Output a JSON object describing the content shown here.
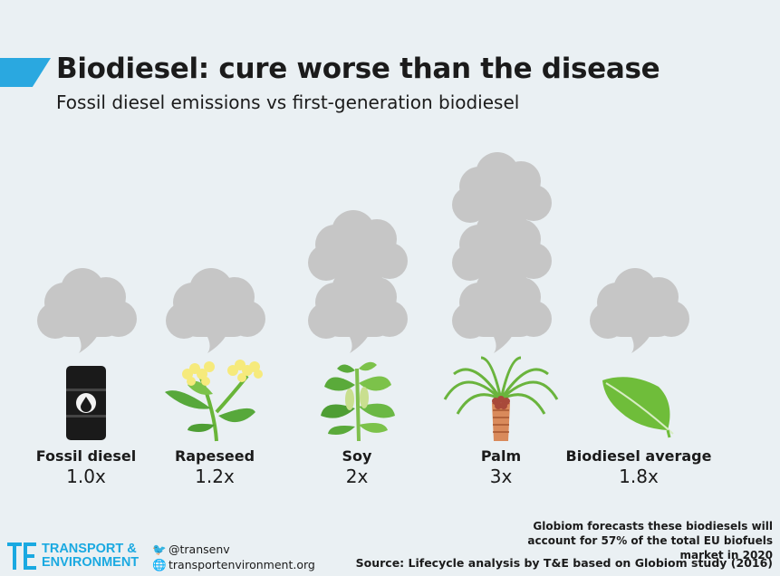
{
  "header": {
    "title": "Biodiesel: cure worse than the disease",
    "subtitle": "Fossil diesel emissions vs first-generation biodiesel"
  },
  "chart_data": {
    "type": "bar",
    "title": "Biodiesel: cure worse than the disease",
    "subtitle": "Fossil diesel emissions vs first-generation biodiesel",
    "categories": [
      "Fossil diesel",
      "Rapeseed",
      "Soy",
      "Palm",
      "Biodiesel average"
    ],
    "values": [
      1.0,
      1.2,
      2,
      3,
      1.8
    ],
    "value_labels": [
      "1.0x",
      "1.2x",
      "2x",
      "3x",
      "1.8x"
    ],
    "icons": [
      "oil-barrel",
      "rapeseed-plant",
      "soy-plant",
      "palm-tree",
      "leaf"
    ],
    "colors": {
      "cloud": "#c6c6c6",
      "accent": "#2aa8e0",
      "green": "#62b33f",
      "text": "#1b1b1b"
    }
  },
  "footer": {
    "note": "Globiom forecasts these biodiesels will account for 57% of the total EU biofuels market in 2020",
    "source": "Source: Lifecycle analysis by T&E based on Globiom study (2016)",
    "logo_line1": "TRANSPORT &",
    "logo_line2": "ENVIRONMENT",
    "twitter": "@transenv",
    "website": "transportenvironment.org"
  }
}
